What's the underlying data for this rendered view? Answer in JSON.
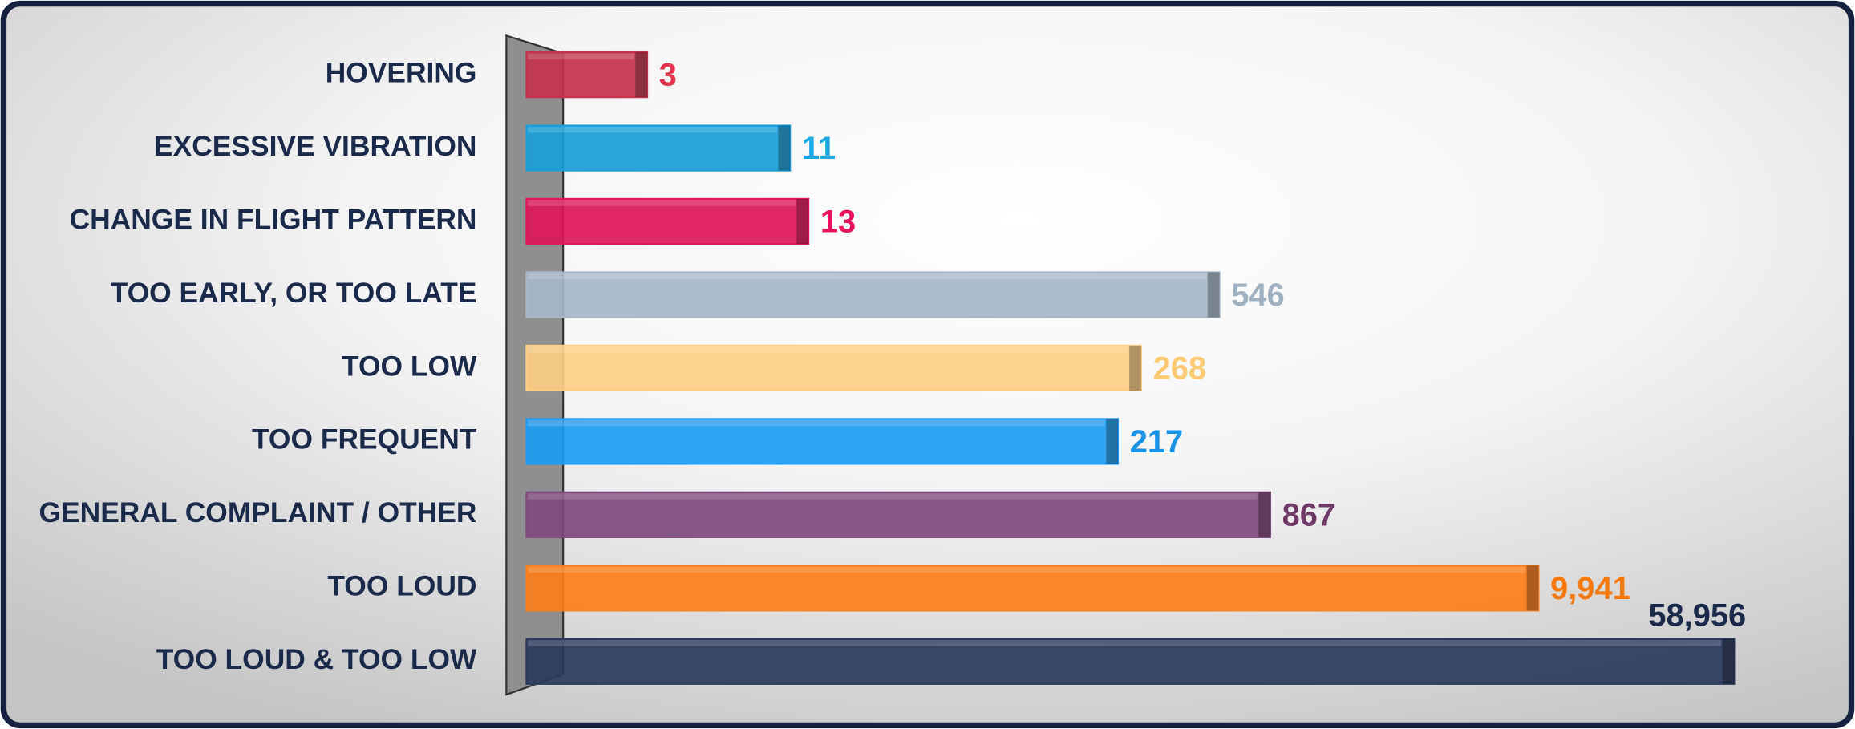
{
  "chart_data": {
    "type": "bar",
    "orientation": "horizontal",
    "categories": [
      "HOVERING",
      "EXCESSIVE VIBRATION",
      "CHANGE IN FLIGHT PATTERN",
      "TOO EARLY, OR TOO LATE",
      "TOO LOW",
      "TOO FREQUENT",
      "GENERAL COMPLAINT / OTHER",
      "TOO LOUD",
      "TOO LOUD & TOO LOW"
    ],
    "values": [
      3,
      11,
      13,
      546,
      268,
      217,
      867,
      9941,
      58956
    ],
    "value_labels": [
      "3",
      "11",
      "13",
      "546",
      "268",
      "217",
      "867",
      "9,941",
      "58,956"
    ],
    "colors": [
      "#c2344d",
      "#1b9fd8",
      "#e0175a",
      "#a7b7c7",
      "#fbcf82",
      "#1f9bf2",
      "#7e4b7c",
      "#fb7e1b",
      "#2c3a5c"
    ],
    "label_colors": [
      "#e2334f",
      "#19a8e2",
      "#e8125e",
      "#9fb0c0",
      "#fcca74",
      "#1a92e6",
      "#6e3a66",
      "#f47a10",
      "#1c2a4a"
    ],
    "xscale": "log",
    "xlim": [
      1,
      100000
    ]
  }
}
